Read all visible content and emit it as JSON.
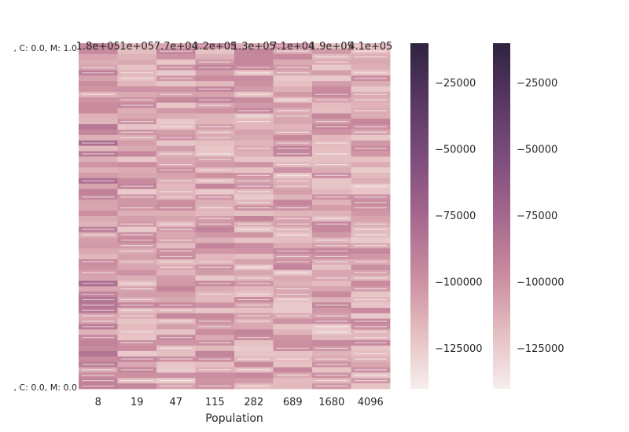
{
  "chart_data": {
    "type": "heatmap",
    "xlabel": "Population",
    "x": [
      "8",
      "19",
      "47",
      "115",
      "282",
      "689",
      "1680",
      "4096"
    ],
    "y_first": ", C: 0.0, M: 1.0",
    "y_last": ", C: 0.0, M: 0.0",
    "first_row_labels": [
      "1.8e+05",
      "1e+05",
      "7.7e+04",
      "1.2e+05",
      "1.3e+05",
      "7.1e+04",
      "1.9e+05",
      "4.1e+05"
    ],
    "colorbars": [
      {
        "ticks": [
          -25000,
          -50000,
          -75000,
          -100000,
          -125000
        ],
        "vmin": -140000,
        "vmax": -10000
      },
      {
        "ticks": [
          -25000,
          -50000,
          -75000,
          -100000,
          -125000
        ],
        "vmin": -140000,
        "vmax": -10000
      }
    ],
    "colormap": [
      "#f6eeec",
      "#e4bdc0",
      "#c98b9e",
      "#a5678d",
      "#7d4d7c",
      "#583763",
      "#2f2340"
    ],
    "grid": false
  }
}
